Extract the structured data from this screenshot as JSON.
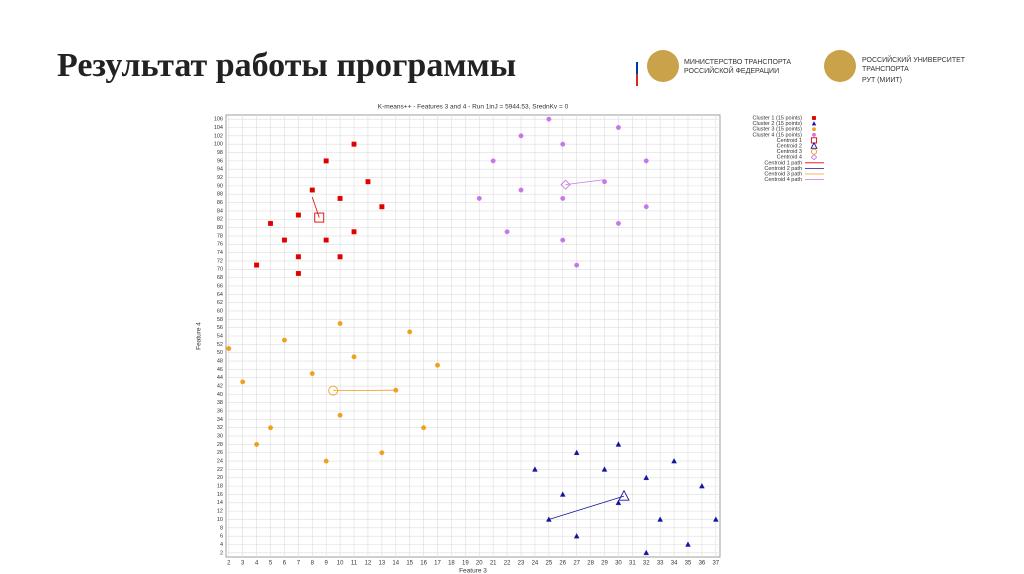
{
  "header": {
    "title": "Результат работы программы",
    "logo_left": [
      "МИНИСТЕРСТВО ТРАНСПОРТА",
      "РОССИЙСКОЙ ФЕДЕРАЦИИ"
    ],
    "logo_right": [
      "РОССИЙСКИЙ УНИВЕРСИТЕТ",
      "ТРАНСПОРТА",
      "РУТ (МИИТ)"
    ]
  },
  "chart_data": {
    "type": "scatter",
    "title": "K-means++ - Features 3 and 4 - Run 1inJ = 5944.53, SrednKv = 0",
    "x_label": "Feature 3",
    "y_label": "Feature 4",
    "xlim": [
      1.8,
      37.3
    ],
    "ylim": [
      1,
      107
    ],
    "xticks": [
      2,
      3,
      4,
      5,
      6,
      7,
      8,
      9,
      10,
      11,
      12,
      13,
      14,
      15,
      16,
      17,
      18,
      19,
      20,
      21,
      22,
      23,
      24,
      25,
      26,
      27,
      28,
      29,
      30,
      31,
      32,
      33,
      34,
      35,
      36,
      37
    ],
    "yticks": [
      2,
      4,
      6,
      8,
      10,
      12,
      14,
      16,
      18,
      20,
      22,
      24,
      26,
      28,
      30,
      32,
      34,
      36,
      38,
      40,
      42,
      44,
      46,
      48,
      50,
      52,
      54,
      56,
      58,
      60,
      62,
      64,
      66,
      68,
      70,
      72,
      74,
      76,
      78,
      80,
      82,
      84,
      86,
      88,
      90,
      92,
      94,
      96,
      98,
      100,
      102,
      104,
      106
    ],
    "grid": true,
    "legend": "outside-right",
    "series": [
      {
        "name": "Cluster 1 (15 points)",
        "color": "#e00000",
        "marker": "square",
        "x": [
          11,
          9,
          12,
          8,
          10,
          13,
          7,
          5,
          11,
          6,
          9,
          7,
          10,
          4,
          7
        ],
        "y": [
          100,
          96,
          91,
          89,
          87,
          85,
          83,
          81,
          79,
          77,
          77,
          73,
          73,
          71,
          69
        ]
      },
      {
        "name": "Cluster 2 (15 points)",
        "color": "#1414a0",
        "marker": "triangle",
        "x": [
          30,
          27,
          34,
          24,
          29,
          32,
          36,
          26,
          30,
          25,
          33,
          37,
          27,
          35,
          32
        ],
        "y": [
          28,
          26,
          24,
          22,
          22,
          20,
          18,
          16,
          14,
          10,
          10,
          10,
          6,
          4,
          2
        ]
      },
      {
        "name": "Cluster 3 (15 points)",
        "color": "#f0a020",
        "marker": "circle",
        "x": [
          10,
          15,
          6,
          2,
          11,
          17,
          8,
          3,
          14,
          10,
          5,
          16,
          4,
          13,
          9
        ],
        "y": [
          57,
          55,
          53,
          51,
          49,
          47,
          45,
          43,
          41,
          35,
          32,
          32,
          28,
          26,
          24
        ]
      },
      {
        "name": "Cluster 4 (15 points)",
        "color": "#c678e6",
        "marker": "circle",
        "x": [
          25,
          30,
          23,
          26,
          21,
          32,
          29,
          23,
          20,
          26,
          32,
          30,
          22,
          26,
          27
        ],
        "y": [
          106,
          104,
          102,
          100,
          96,
          96,
          91,
          89,
          87,
          87,
          85,
          81,
          79,
          77,
          71
        ]
      },
      {
        "name": "Centroid 1",
        "color": "#e00000",
        "marker": "square-open",
        "x": [
          8.5
        ],
        "y": [
          82.4
        ]
      },
      {
        "name": "Centroid 2",
        "color": "#1414a0",
        "marker": "triangle-open",
        "x": [
          30.4
        ],
        "y": [
          15.6
        ]
      },
      {
        "name": "Centroid 3",
        "color": "#f0a020",
        "marker": "circle-open",
        "x": [
          9.5
        ],
        "y": [
          40.9
        ]
      },
      {
        "name": "Centroid 4",
        "color": "#c678e6",
        "marker": "diamond-open",
        "x": [
          26.2
        ],
        "y": [
          90.3
        ]
      },
      {
        "name": "Centroid 1 path",
        "color": "#e00000",
        "marker": "line",
        "x": [
          8,
          8.5
        ],
        "y": [
          87.3,
          82.4
        ]
      },
      {
        "name": "Centroid 2 path",
        "color": "#1414a0",
        "marker": "line",
        "x": [
          25,
          30.4
        ],
        "y": [
          10,
          15.6
        ]
      },
      {
        "name": "Centroid 3 path",
        "color": "#f0a020",
        "marker": "line",
        "x": [
          14,
          9.5
        ],
        "y": [
          41,
          40.9
        ]
      },
      {
        "name": "Centroid 4 path",
        "color": "#c678e6",
        "marker": "line",
        "x": [
          29,
          26.2
        ],
        "y": [
          91.5,
          90.3
        ]
      }
    ]
  }
}
